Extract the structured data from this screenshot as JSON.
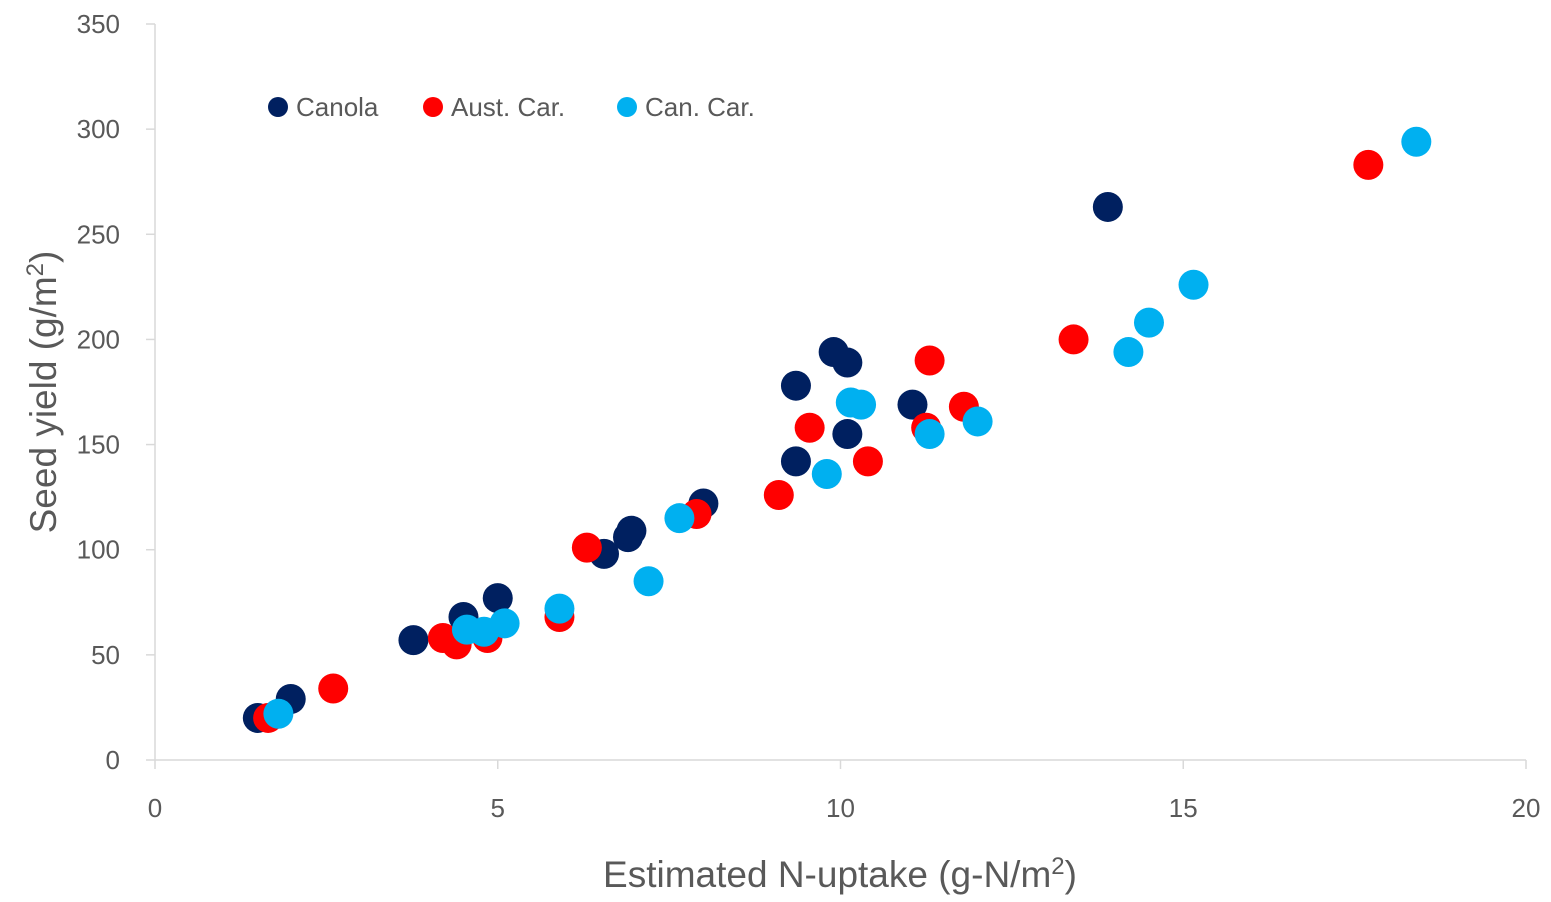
{
  "chart_data": {
    "type": "scatter",
    "xlabel": "Estimated N-uptake (g-N/m",
    "xlabel_sup": "2",
    "xlabel_end": ")",
    "ylabel": "Seed yield (g/m",
    "ylabel_sup": "2",
    "ylabel_end": ")",
    "xlim": [
      0,
      20
    ],
    "ylim": [
      0,
      350
    ],
    "xticks": [
      0,
      5,
      10,
      15,
      20
    ],
    "yticks": [
      0,
      50,
      100,
      150,
      200,
      250,
      300,
      350
    ],
    "grid": false,
    "legend_position": "top-left",
    "series": [
      {
        "name": "Canola",
        "color": "#002060",
        "points": [
          [
            1.5,
            20
          ],
          [
            1.98,
            29
          ],
          [
            3.77,
            57
          ],
          [
            4.5,
            68
          ],
          [
            5.0,
            77
          ],
          [
            6.55,
            98
          ],
          [
            6.9,
            106
          ],
          [
            6.95,
            109
          ],
          [
            8.0,
            122
          ],
          [
            9.35,
            142
          ],
          [
            9.35,
            178
          ],
          [
            9.9,
            194
          ],
          [
            10.1,
            189
          ],
          [
            10.1,
            155
          ],
          [
            11.05,
            169
          ],
          [
            13.9,
            263
          ]
        ]
      },
      {
        "name": "Aust. Car.",
        "color": "#FF0000",
        "points": [
          [
            1.65,
            20
          ],
          [
            2.6,
            34
          ],
          [
            4.2,
            58
          ],
          [
            4.4,
            55
          ],
          [
            4.85,
            58
          ],
          [
            5.9,
            68
          ],
          [
            6.3,
            101
          ],
          [
            7.9,
            117
          ],
          [
            9.1,
            126
          ],
          [
            9.55,
            158
          ],
          [
            10.4,
            142
          ],
          [
            11.25,
            158
          ],
          [
            11.3,
            190
          ],
          [
            11.8,
            168
          ],
          [
            13.4,
            200
          ],
          [
            17.7,
            283
          ]
        ]
      },
      {
        "name": "Can. Car.",
        "color": "#00B0F0",
        "points": [
          [
            1.8,
            22
          ],
          [
            4.55,
            62
          ],
          [
            4.8,
            61
          ],
          [
            5.1,
            65
          ],
          [
            5.9,
            72
          ],
          [
            7.2,
            85
          ],
          [
            7.65,
            115
          ],
          [
            9.8,
            136
          ],
          [
            10.15,
            170
          ],
          [
            10.3,
            169
          ],
          [
            11.3,
            155
          ],
          [
            12.0,
            161
          ],
          [
            14.2,
            194
          ],
          [
            14.5,
            208
          ],
          [
            15.15,
            226
          ],
          [
            18.4,
            294
          ]
        ]
      }
    ]
  }
}
